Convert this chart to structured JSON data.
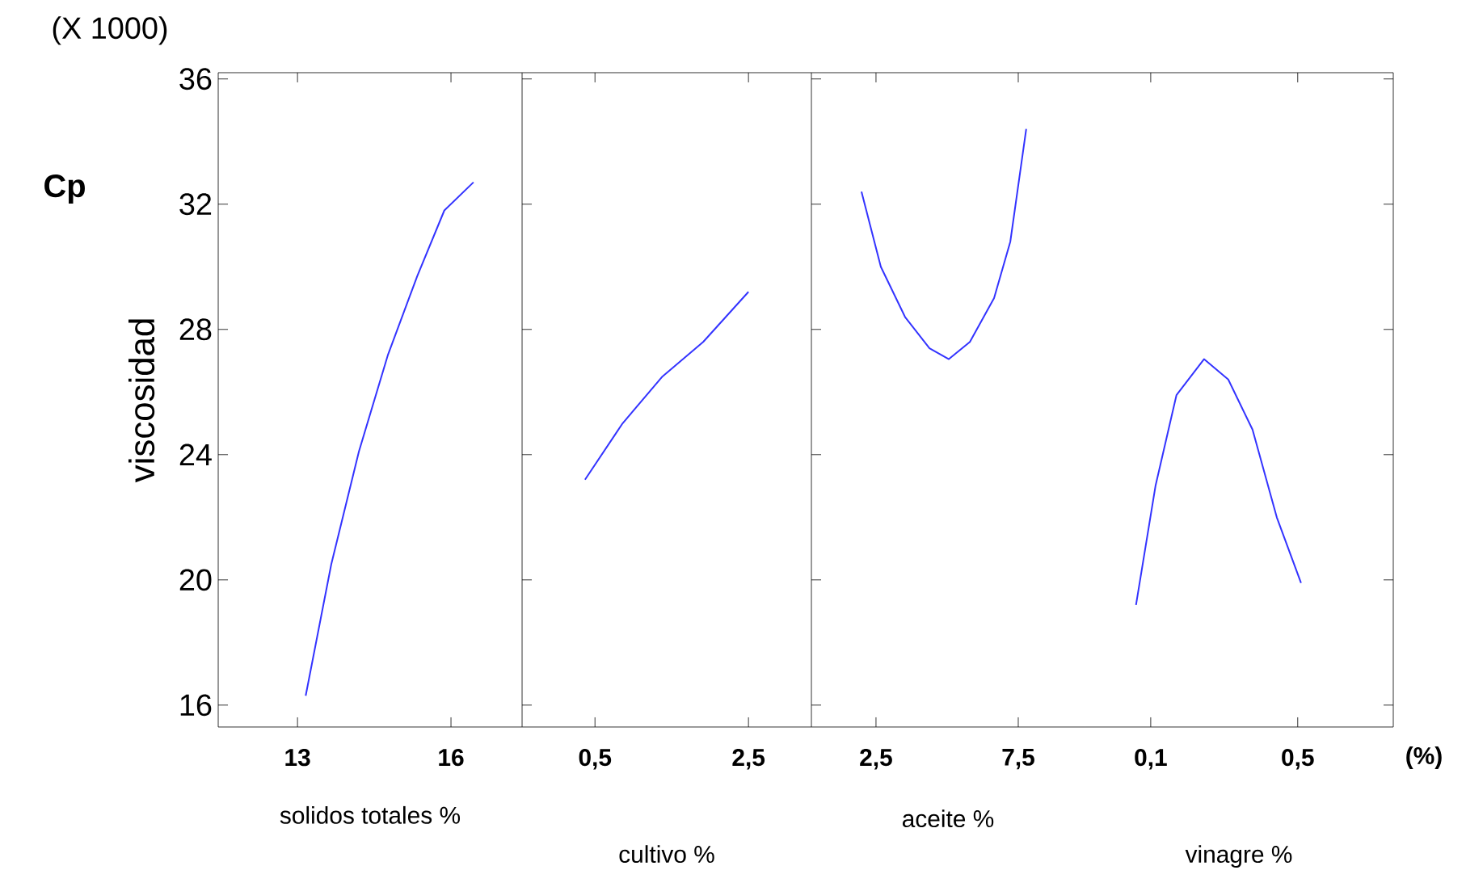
{
  "chart_data": [
    {
      "type": "line",
      "ylabel": "viscosidad",
      "xlabel": "solidos totales %",
      "annotations": [
        "(X 1000)",
        "Cp"
      ],
      "xlim": [
        11.45,
        17.39
      ],
      "xticks": [
        13,
        16
      ],
      "ylim": [
        15.3,
        36.2
      ],
      "yticks": [
        16,
        20,
        24,
        28,
        32,
        36
      ],
      "marker": "none",
      "line_style": "solid",
      "series": [
        {
          "color": "#3333ff",
          "x": [
            13.16,
            13.66,
            14.2,
            14.77,
            15.34,
            15.87,
            16.44
          ],
          "values": [
            16.3,
            20.5,
            24.1,
            27.2,
            29.7,
            31.8,
            32.7
          ]
        }
      ]
    },
    {
      "type": "line",
      "xlabel": "cultivo %",
      "xlim": [
        -0.45,
        3.32
      ],
      "xticks": [
        {
          "value": 0.5,
          "label": "0,5"
        },
        {
          "value": 2.5,
          "label": "2,5"
        }
      ],
      "ylim": [
        15.3,
        36.2
      ],
      "yticks": [
        16,
        20,
        24,
        28,
        32,
        36
      ],
      "tick_labels": "x",
      "marker": "none",
      "line_style": "solid",
      "series": [
        {
          "color": "#3333ff",
          "x": [
            0.37,
            0.86,
            1.38,
            1.91,
            2.5
          ],
          "values": [
            23.2,
            25.0,
            26.5,
            27.6,
            29.2
          ]
        }
      ]
    },
    {
      "type": "line",
      "xlabel": "aceite %",
      "xlim": [
        0.23,
        9.83
      ],
      "xticks": [
        {
          "value": 2.5,
          "label": "2,5"
        },
        {
          "value": 7.5,
          "label": "7,5"
        }
      ],
      "ylim": [
        15.3,
        36.2
      ],
      "yticks": [
        16,
        20,
        24,
        28,
        32,
        36
      ],
      "tick_labels": "x",
      "marker": "none",
      "line_style": "solid",
      "series": [
        {
          "color": "#3333ff",
          "x": [
            1.99,
            2.67,
            3.52,
            4.38,
            5.06,
            5.8,
            6.65,
            7.22,
            7.78
          ],
          "values": [
            32.4,
            30.0,
            28.4,
            27.4,
            27.05,
            27.6,
            29.0,
            30.8,
            34.4
          ]
        }
      ]
    },
    {
      "type": "line",
      "xlabel": "vinagre %",
      "annotations": [
        "(%)"
      ],
      "xlim": [
        -0.08,
        0.76
      ],
      "xticks": [
        {
          "value": 0.1,
          "label": "0,1"
        },
        {
          "value": 0.5,
          "label": "0,5"
        }
      ],
      "ylim": [
        15.3,
        36.2
      ],
      "yticks": [
        16,
        20,
        24,
        28,
        32,
        36
      ],
      "tick_labels": "x",
      "marker": "none",
      "line_style": "solid",
      "series": [
        {
          "color": "#3333ff",
          "x": [
            0.06,
            0.113,
            0.17,
            0.245,
            0.311,
            0.377,
            0.443,
            0.509
          ],
          "values": [
            19.2,
            23.0,
            25.9,
            27.05,
            26.4,
            24.8,
            22.0,
            19.9
          ]
        }
      ]
    }
  ]
}
